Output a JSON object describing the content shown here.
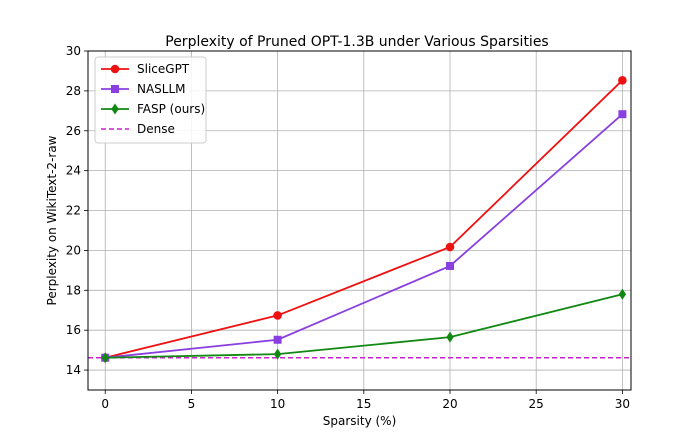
{
  "chart_data": {
    "type": "line",
    "title": "Perplexity of Pruned OPT-1.3B under Various Sparsities",
    "xlabel": "Sparsity (%)",
    "ylabel": "Perplexity on WikiText-2-raw",
    "xlim": [
      -1,
      30.5
    ],
    "ylim": [
      13,
      30
    ],
    "xticks": [
      0,
      5,
      10,
      15,
      20,
      25,
      30
    ],
    "yticks": [
      14,
      16,
      18,
      20,
      22,
      24,
      26,
      28,
      30
    ],
    "grid": true,
    "legend_position": "upper-left",
    "x": [
      0,
      10,
      20,
      30
    ],
    "series": [
      {
        "name": "SliceGPT",
        "color": "#ee1111",
        "marker": "circle",
        "values": [
          14.62,
          16.74,
          20.17,
          28.53
        ]
      },
      {
        "name": "NASLLM",
        "color": "#8a3fe0",
        "marker": "square",
        "values": [
          14.62,
          15.52,
          19.22,
          26.83
        ]
      },
      {
        "name": "FASP (ours)",
        "color": "#118811",
        "marker": "diamond",
        "values": [
          14.62,
          14.8,
          15.65,
          17.8
        ]
      }
    ],
    "reference_lines": [
      {
        "name": "Dense",
        "color": "#cc22cc",
        "style": "dashed",
        "value": 14.62
      }
    ]
  }
}
